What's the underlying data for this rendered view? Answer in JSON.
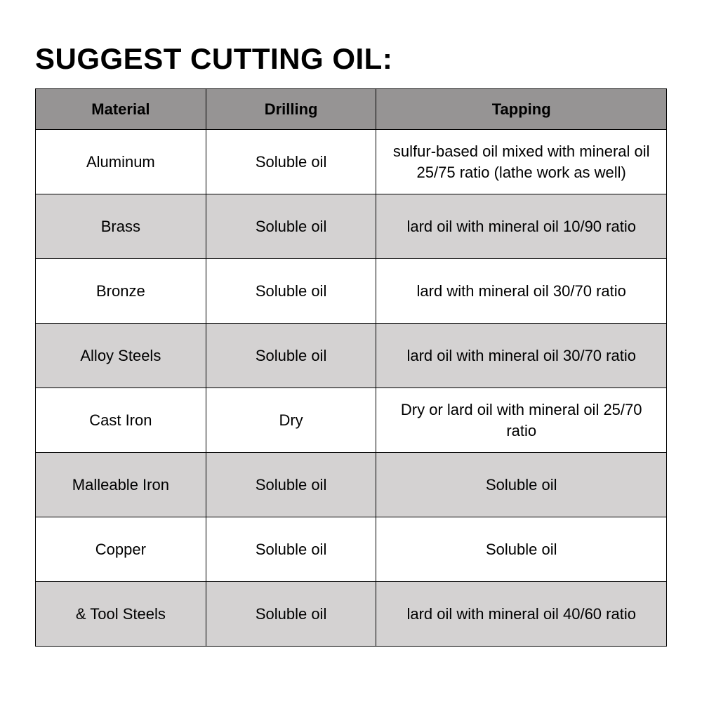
{
  "title": "SUGGEST CUTTING OIL:",
  "table": {
    "type": "table",
    "header_bg": "#969494",
    "row_alt_bg_even": "#ffffff",
    "row_alt_bg_odd": "#d4d2d2",
    "border_color": "#000000",
    "title_fontsize": 42,
    "header_fontsize": 22,
    "cell_fontsize": 22,
    "columns": [
      "Material",
      "Drilling",
      "Tapping"
    ],
    "column_widths_pct": [
      27,
      27,
      46
    ],
    "rows": [
      {
        "material": "Aluminum",
        "drilling": "Soluble oil",
        "tapping": "sulfur-based oil mixed with mineral oil 25/75 ratio (lathe work as well)"
      },
      {
        "material": "Brass",
        "drilling": "Soluble oil",
        "tapping": "lard oil with mineral oil 10/90 ratio"
      },
      {
        "material": "Bronze",
        "drilling": "Soluble oil",
        "tapping": "lard with mineral oil 30/70 ratio"
      },
      {
        "material": "Alloy Steels",
        "drilling": "Soluble oil",
        "tapping": "lard oil with mineral oil 30/70 ratio"
      },
      {
        "material": "Cast Iron",
        "drilling": "Dry",
        "tapping": "Dry or  lard oil with  mineral oil 25/70 ratio"
      },
      {
        "material": "Malleable Iron",
        "drilling": "Soluble oil",
        "tapping": "Soluble oil"
      },
      {
        "material": "Copper",
        "drilling": "Soluble oil",
        "tapping": "Soluble oil"
      },
      {
        "material": "& Tool Steels",
        "drilling": "Soluble oil",
        "tapping": "lard oil with mineral oil 40/60 ratio"
      }
    ]
  }
}
